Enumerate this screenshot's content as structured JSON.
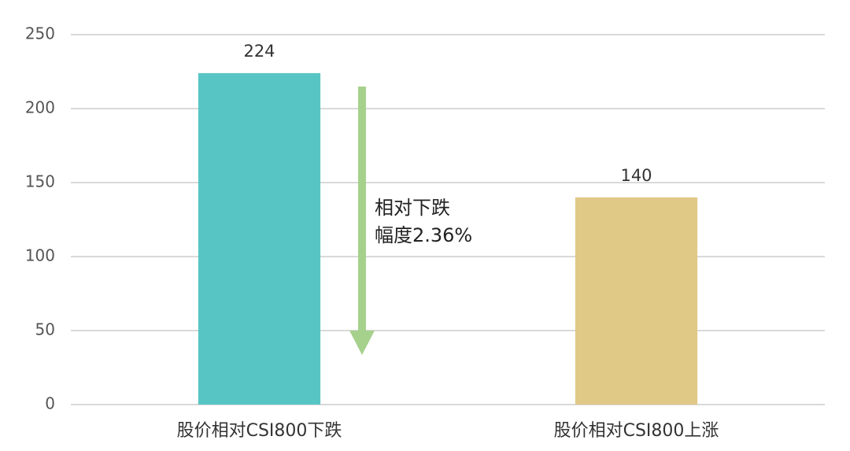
{
  "chart_data": {
    "type": "bar",
    "categories": [
      "股价相对CSI800下跌",
      "股价相对CSI800上涨"
    ],
    "values": [
      224,
      140
    ],
    "colors": [
      "#58c5c5",
      "#e0c886"
    ],
    "ylim": [
      0,
      250
    ],
    "yticks": [
      0,
      50,
      100,
      150,
      200,
      250
    ],
    "grid": true,
    "annotations": [
      "相对下跌",
      "幅度2.36%"
    ]
  }
}
